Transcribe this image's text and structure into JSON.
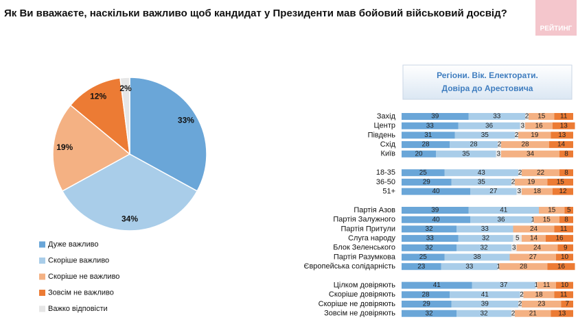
{
  "logo": "РЕЙТИНГ",
  "chart_data": [
    {
      "type": "pie",
      "title": "Як Ви вважаєте, наскільки важливо щоб кандидат у Президенти мав бойовий військовий досвід?",
      "categories": [
        "Дуже важливо",
        "Скоріше важливо",
        "Скоріше не важливо",
        "Зовсім не важливо",
        "Важко відповісти"
      ],
      "values": [
        33,
        34,
        19,
        12,
        2
      ],
      "value_labels": [
        "33%",
        "34%",
        "19%",
        "12%",
        "2%"
      ],
      "colors": [
        "#6aa6d8",
        "#a9cde9",
        "#f4b183",
        "#ec7b34",
        "#e6e6e6"
      ]
    },
    {
      "type": "stacked-barh",
      "title": [
        "Регіони. Вік. Електорати.",
        "Довіра до Арестовича"
      ],
      "categories": [
        "Захід",
        "Центр",
        "Південь",
        "Схід",
        "Київ",
        null,
        "18-35",
        "36-50",
        "51+",
        null,
        "Партія Азов",
        "Партія Залужного",
        "Партія Притули",
        "Слуга народу",
        "Блок Зеленського",
        "Партія  Разумкова",
        "Європейська солідарність",
        null,
        "Цілком довіряють",
        "Скоріше довіряють",
        "Скоріше не довіряють",
        "Зовсім не довіряють"
      ],
      "xlim": [
        0,
        100
      ],
      "series": [
        {
          "color": "#6aa6d8",
          "values": [
            39,
            33,
            31,
            28,
            20,
            null,
            25,
            29,
            40,
            null,
            39,
            40,
            32,
            33,
            32,
            25,
            23,
            null,
            41,
            28,
            29,
            32
          ]
        },
        {
          "color": "#a9cde9",
          "values": [
            33,
            36,
            35,
            28,
            35,
            null,
            43,
            35,
            27,
            null,
            41,
            36,
            33,
            32,
            32,
            38,
            33,
            null,
            37,
            41,
            39,
            32
          ]
        },
        {
          "color": "#e6e6e6",
          "values": [
            2,
            3,
            2,
            2,
            3,
            null,
            2,
            2,
            3,
            null,
            null,
            1,
            null,
            5,
            3,
            null,
            1,
            null,
            1,
            2,
            2,
            2
          ]
        },
        {
          "color": "#f4b183",
          "values": [
            15,
            16,
            19,
            28,
            34,
            null,
            22,
            19,
            18,
            null,
            15,
            15,
            24,
            14,
            24,
            27,
            28,
            null,
            11,
            18,
            23,
            21
          ]
        },
        {
          "color": "#ec7b34",
          "values": [
            11,
            13,
            13,
            14,
            8,
            null,
            8,
            15,
            12,
            null,
            5,
            8,
            11,
            16,
            9,
            10,
            16,
            null,
            10,
            11,
            7,
            13
          ]
        }
      ]
    }
  ]
}
